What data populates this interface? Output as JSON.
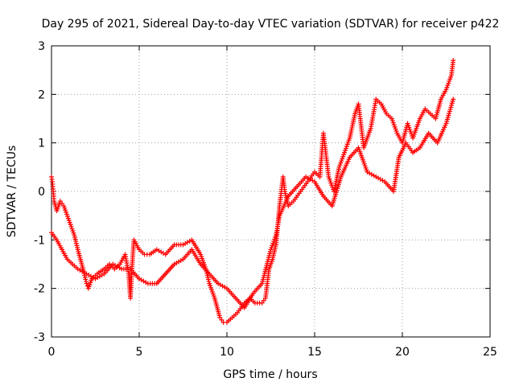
{
  "chart_data": {
    "type": "scatter",
    "title": "Day 295 of 2021, Sidereal Day-to-day VTEC variation (SDTVAR) for receiver p422",
    "xlabel": "GPS time / hours",
    "ylabel": "SDTVAR / TECUs",
    "xlim": [
      0,
      25
    ],
    "ylim": [
      -3,
      3
    ],
    "xticks": [
      0,
      5,
      10,
      15,
      20,
      25
    ],
    "yticks": [
      -3,
      -2,
      -1,
      0,
      1,
      2,
      3
    ],
    "x_tick_labels": [
      "0",
      "5",
      "10",
      "15",
      "20",
      "25"
    ],
    "y_tick_labels": [
      "-3",
      "-2",
      "-1",
      "0",
      "1",
      "2",
      "3"
    ],
    "grid": true,
    "marker": "+",
    "series": [
      {
        "name": "SDTVAR",
        "color": "#ff0000",
        "points": [
          [
            0.0,
            0.3
          ],
          [
            0.05,
            0.2
          ],
          [
            0.1,
            0.0
          ],
          [
            0.15,
            -0.2
          ],
          [
            0.3,
            -0.4
          ],
          [
            0.5,
            -0.2
          ],
          [
            0.7,
            -0.3
          ],
          [
            1.0,
            -0.6
          ],
          [
            1.3,
            -0.9
          ],
          [
            1.5,
            -1.2
          ],
          [
            1.8,
            -1.6
          ],
          [
            2.0,
            -1.9
          ],
          [
            2.1,
            -2.0
          ],
          [
            2.3,
            -1.8
          ],
          [
            2.6,
            -1.7
          ],
          [
            3.0,
            -1.6
          ],
          [
            3.3,
            -1.5
          ],
          [
            3.6,
            -1.6
          ],
          [
            3.9,
            -1.5
          ],
          [
            4.2,
            -1.3
          ],
          [
            4.4,
            -1.7
          ],
          [
            4.5,
            -2.2
          ],
          [
            4.6,
            -1.5
          ],
          [
            4.7,
            -1.0
          ],
          [
            5.0,
            -1.2
          ],
          [
            5.3,
            -1.3
          ],
          [
            5.6,
            -1.3
          ],
          [
            6.0,
            -1.2
          ],
          [
            6.5,
            -1.3
          ],
          [
            7.0,
            -1.1
          ],
          [
            7.5,
            -1.1
          ],
          [
            8.0,
            -1.0
          ],
          [
            8.5,
            -1.3
          ],
          [
            8.8,
            -1.6
          ],
          [
            9.0,
            -1.9
          ],
          [
            9.3,
            -2.2
          ],
          [
            9.6,
            -2.6
          ],
          [
            9.8,
            -2.7
          ],
          [
            10.0,
            -2.7
          ],
          [
            10.3,
            -2.6
          ],
          [
            10.6,
            -2.5
          ],
          [
            11.0,
            -2.3
          ],
          [
            11.3,
            -2.2
          ],
          [
            11.6,
            -2.3
          ],
          [
            12.0,
            -2.3
          ],
          [
            12.2,
            -2.2
          ],
          [
            12.4,
            -1.6
          ],
          [
            12.6,
            -1.4
          ],
          [
            12.8,
            -1.1
          ],
          [
            13.0,
            -0.3
          ],
          [
            13.2,
            0.3
          ],
          [
            13.3,
            0.0
          ],
          [
            13.5,
            -0.3
          ],
          [
            13.8,
            -0.2
          ],
          [
            14.2,
            0.0
          ],
          [
            14.6,
            0.2
          ],
          [
            15.0,
            0.4
          ],
          [
            15.3,
            0.3
          ],
          [
            15.5,
            1.2
          ],
          [
            15.6,
            0.9
          ],
          [
            15.8,
            0.3
          ],
          [
            16.1,
            0.0
          ],
          [
            16.4,
            0.5
          ],
          [
            16.7,
            0.8
          ],
          [
            17.0,
            1.1
          ],
          [
            17.3,
            1.6
          ],
          [
            17.5,
            1.8
          ],
          [
            17.8,
            0.9
          ],
          [
            18.2,
            1.3
          ],
          [
            18.5,
            1.9
          ],
          [
            18.8,
            1.8
          ],
          [
            19.1,
            1.6
          ],
          [
            19.4,
            1.5
          ],
          [
            19.7,
            1.2
          ],
          [
            20.0,
            1.0
          ],
          [
            20.3,
            1.4
          ],
          [
            20.6,
            1.1
          ],
          [
            21.0,
            1.5
          ],
          [
            21.3,
            1.7
          ],
          [
            21.6,
            1.6
          ],
          [
            21.9,
            1.5
          ],
          [
            22.2,
            1.9
          ],
          [
            22.5,
            2.1
          ],
          [
            22.8,
            2.4
          ],
          [
            22.9,
            2.7
          ]
        ],
        "points_b": [
          [
            0.0,
            -0.85
          ],
          [
            0.3,
            -1.0
          ],
          [
            0.6,
            -1.2
          ],
          [
            0.9,
            -1.4
          ],
          [
            1.2,
            -1.5
          ],
          [
            1.5,
            -1.6
          ],
          [
            2.0,
            -1.7
          ],
          [
            2.5,
            -1.8
          ],
          [
            3.0,
            -1.7
          ],
          [
            3.5,
            -1.5
          ],
          [
            4.0,
            -1.6
          ],
          [
            4.5,
            -1.6
          ],
          [
            5.0,
            -1.8
          ],
          [
            5.5,
            -1.9
          ],
          [
            6.0,
            -1.9
          ],
          [
            7.0,
            -1.5
          ],
          [
            7.5,
            -1.4
          ],
          [
            8.0,
            -1.2
          ],
          [
            8.5,
            -1.5
          ],
          [
            9.0,
            -1.7
          ],
          [
            9.5,
            -1.9
          ],
          [
            10.0,
            -2.0
          ],
          [
            10.5,
            -2.2
          ],
          [
            11.0,
            -2.4
          ],
          [
            11.5,
            -2.1
          ],
          [
            12.0,
            -1.9
          ],
          [
            12.5,
            -1.2
          ],
          [
            12.8,
            -0.9
          ],
          [
            13.0,
            -0.5
          ],
          [
            13.5,
            -0.1
          ],
          [
            14.0,
            0.1
          ],
          [
            14.5,
            0.3
          ],
          [
            15.0,
            0.2
          ],
          [
            15.5,
            -0.1
          ],
          [
            16.0,
            -0.3
          ],
          [
            16.5,
            0.3
          ],
          [
            17.0,
            0.7
          ],
          [
            17.5,
            0.9
          ],
          [
            18.0,
            0.4
          ],
          [
            18.5,
            0.3
          ],
          [
            19.0,
            0.2
          ],
          [
            19.5,
            0.0
          ],
          [
            19.8,
            0.7
          ],
          [
            20.2,
            1.0
          ],
          [
            20.6,
            0.8
          ],
          [
            21.0,
            0.9
          ],
          [
            21.5,
            1.2
          ],
          [
            22.0,
            1.0
          ],
          [
            22.5,
            1.4
          ],
          [
            22.9,
            1.9
          ]
        ]
      }
    ]
  }
}
